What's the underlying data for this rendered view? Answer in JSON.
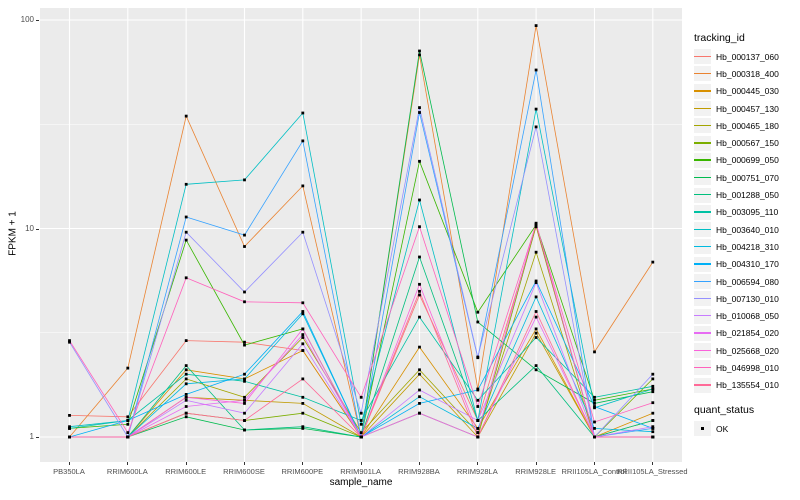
{
  "figure": {
    "y_axis": {
      "title": "FPKM + 1",
      "tick_labels": [
        "100",
        "10",
        "1"
      ],
      "tick_values": [
        100,
        10,
        1
      ]
    },
    "x_axis": {
      "title": "sample_name"
    },
    "legend": {
      "tracking_title": "tracking_id",
      "quant_title": "quant_status",
      "quant_entries": [
        {
          "label": "OK",
          "marker": "black-square"
        }
      ]
    },
    "colors": {
      "panel_bg": "#EBEBEB",
      "grid": "#FFFFFF",
      "legend_key_bg": "#F2F2F2",
      "axis_text": "#4D4D4D",
      "point": "#000000"
    }
  },
  "chart_data": {
    "type": "line",
    "title": "",
    "xlabel": "sample_name",
    "ylabel": "FPKM + 1",
    "yscale": "log10",
    "ylim": [
      0.9,
      120
    ],
    "y_major_ticks": [
      1,
      10,
      100
    ],
    "y_minor_gridlines": [
      3.1623,
      31.623
    ],
    "grid": "white-on-grey",
    "legend_position": "right",
    "point_marker": "small black square (quant_status OK) at every data point",
    "categories": [
      "PB350LA",
      "RRIM600LA",
      "RRIM600LE",
      "RRIM600SE",
      "RRIM600PE",
      "RRIM901LA",
      "RRIM928BA",
      "RRIM928LA",
      "RRIM928LE",
      "RRII105LA_Control",
      "RRII105LA_Stressed"
    ],
    "series": [
      {
        "name": "Hb_000137_060",
        "color": "#F8766D",
        "values": [
          1.27,
          1.25,
          2.9,
          2.85,
          2.6,
          1.0,
          4.8,
          1.2,
          10.2,
          1.0,
          1.0
        ]
      },
      {
        "name": "Hb_000318_400",
        "color": "#EA8331",
        "values": [
          1.0,
          2.14,
          34.6,
          8.2,
          16.0,
          1.0,
          68.0,
          1.7,
          94.0,
          2.56,
          6.9
        ]
      },
      {
        "name": "Hb_000445_030",
        "color": "#D89000",
        "values": [
          1.0,
          1.0,
          2.1,
          1.9,
          2.6,
          1.0,
          2.7,
          1.1,
          3.3,
          1.0,
          1.3
        ]
      },
      {
        "name": "Hb_000457_130",
        "color": "#C09B00",
        "values": [
          1.0,
          1.0,
          1.55,
          1.5,
          1.45,
          1.0,
          2.0,
          1.0,
          3.15,
          1.0,
          1.0
        ]
      },
      {
        "name": "Hb_000465_180",
        "color": "#A3A500",
        "values": [
          1.0,
          1.0,
          1.9,
          1.55,
          3.0,
          1.05,
          2.1,
          1.05,
          7.7,
          1.0,
          1.2
        ]
      },
      {
        "name": "Hb_000567_150",
        "color": "#7CAE00",
        "values": [
          1.0,
          1.0,
          1.3,
          1.2,
          1.3,
          1.0,
          1.3,
          1.0,
          10.3,
          1.0,
          1.9
        ]
      },
      {
        "name": "Hb_000699_050",
        "color": "#39B600",
        "values": [
          1.1,
          1.15,
          8.8,
          2.76,
          3.3,
          1.0,
          21.0,
          3.97,
          10.4,
          1.5,
          1.7
        ]
      },
      {
        "name": "Hb_000751_070",
        "color": "#00BB4E",
        "values": [
          1.0,
          1.0,
          1.25,
          1.08,
          1.1,
          1.0,
          71.0,
          3.56,
          2.1,
          1.45,
          1.65
        ]
      },
      {
        "name": "Hb_001288_050",
        "color": "#00BF7D",
        "values": [
          1.0,
          1.0,
          2.2,
          1.08,
          1.12,
          1.0,
          7.3,
          1.2,
          2.2,
          1.0,
          1.2
        ]
      },
      {
        "name": "Hb_003095_110",
        "color": "#00C1A3",
        "values": [
          1.1,
          1.2,
          2.0,
          1.85,
          1.55,
          1.2,
          3.76,
          1.5,
          3.0,
          1.55,
          1.75
        ]
      },
      {
        "name": "Hb_003640_010",
        "color": "#00BFC4",
        "values": [
          1.12,
          1.2,
          16.3,
          17.1,
          35.8,
          1.15,
          13.7,
          1.2,
          37.4,
          1.38,
          1.7
        ]
      },
      {
        "name": "Hb_004218_310",
        "color": "#00BAE0",
        "values": [
          1.0,
          1.0,
          1.8,
          1.9,
          3.9,
          1.0,
          1.56,
          1.1,
          4.7,
          1.1,
          1.06
        ]
      },
      {
        "name": "Hb_004310_170",
        "color": "#00B0F6",
        "values": [
          1.0,
          1.2,
          1.6,
          2.0,
          4.0,
          1.0,
          1.45,
          1.68,
          5.6,
          1.4,
          1.1
        ]
      },
      {
        "name": "Hb_006594_080",
        "color": "#35A2FF",
        "values": [
          1.0,
          1.0,
          11.35,
          9.3,
          26.3,
          1.0,
          36.0,
          2.4,
          57.6,
          1.0,
          1.1
        ]
      },
      {
        "name": "Hb_007130_010",
        "color": "#9590FF",
        "values": [
          2.85,
          1.0,
          9.6,
          4.96,
          9.6,
          1.3,
          38.0,
          2.42,
          30.7,
          1.0,
          2.0
        ]
      },
      {
        "name": "Hb_010068_050",
        "color": "#C77CFF",
        "values": [
          1.0,
          1.0,
          1.5,
          1.3,
          2.8,
          1.0,
          1.68,
          1.2,
          5.5,
          1.0,
          1.12
        ]
      },
      {
        "name": "Hb_021854_020",
        "color": "#E76BF3",
        "values": [
          1.0,
          1.0,
          1.4,
          1.5,
          3.1,
          1.0,
          1.3,
          1.0,
          3.76,
          1.0,
          1.0
        ]
      },
      {
        "name": "Hb_025668_020",
        "color": "#FA62DB",
        "values": [
          1.0,
          1.0,
          1.55,
          1.45,
          3.3,
          1.0,
          5.4,
          1.05,
          10.6,
          1.0,
          1.0
        ]
      },
      {
        "name": "Hb_046998_010",
        "color": "#FF62BC",
        "values": [
          2.9,
          1.05,
          5.8,
          4.45,
          4.4,
          1.55,
          10.2,
          1.4,
          10.5,
          1.18,
          1.46
        ]
      },
      {
        "name": "Hb_135554_010",
        "color": "#FF6A98",
        "values": [
          1.0,
          1.0,
          1.3,
          1.2,
          1.9,
          1.0,
          5.0,
          1.0,
          4.0,
          1.0,
          1.0
        ]
      }
    ]
  }
}
